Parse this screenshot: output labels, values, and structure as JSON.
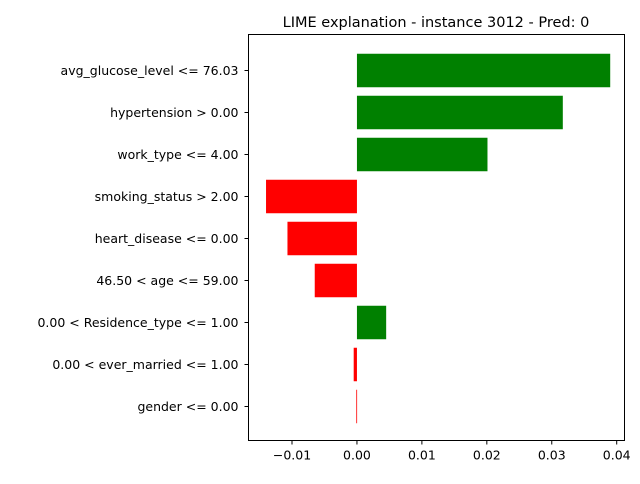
{
  "chart_data": {
    "type": "bar",
    "orientation": "horizontal",
    "title": "LIME explanation - instance 3012 - Pred: 0",
    "xlabel": "",
    "ylabel": "",
    "xlim": [
      -0.0167,
      0.0412
    ],
    "xticks": [
      -0.01,
      0.0,
      0.01,
      0.02,
      0.03,
      0.04
    ],
    "xtick_labels": [
      "−0.01",
      "0.00",
      "0.01",
      "0.02",
      "0.03",
      "0.04"
    ],
    "grid": false,
    "legend": "none",
    "colors": {
      "positive": "#008000",
      "negative": "#ff0000"
    },
    "categories": [
      "avg_glucose_level <= 76.03",
      "hypertension > 0.00",
      "work_type <= 4.00",
      "smoking_status > 2.00",
      "heart_disease <= 0.00",
      "46.50 < age <= 59.00",
      "0.00 < Residence_type <= 1.00",
      "0.00 < ever_married <= 1.00",
      "gender <= 0.00"
    ],
    "values": [
      0.039,
      0.0317,
      0.0201,
      -0.014,
      -0.0107,
      -0.0065,
      0.0045,
      -0.0005,
      -0.0001
    ]
  }
}
